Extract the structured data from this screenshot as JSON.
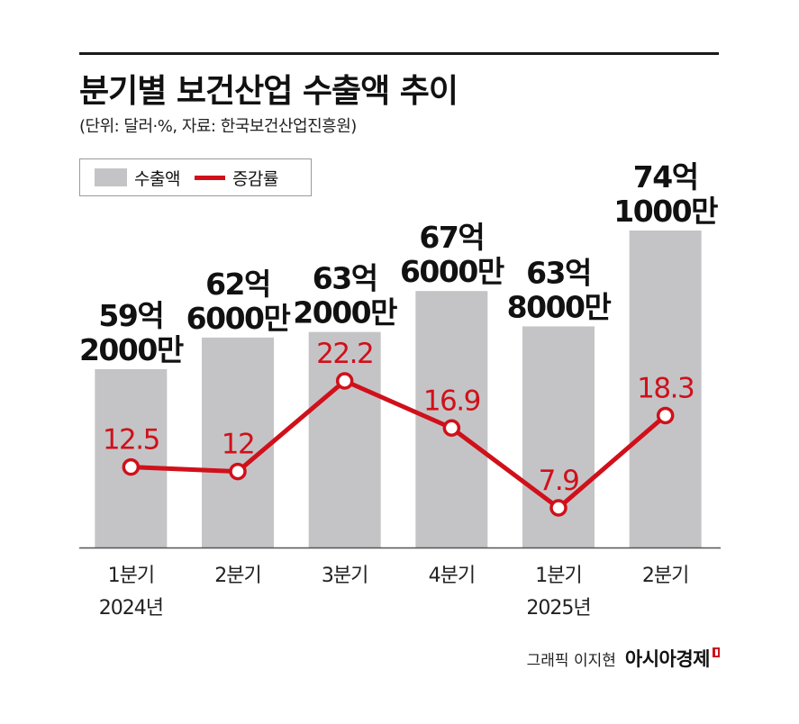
{
  "title": "분기별 보건산업 수출액 추이",
  "subtitle": "(단위: 달러·%, 자료: 한국보건산업진흥원)",
  "legend": {
    "bar_label": "수출액",
    "line_label": "증감률"
  },
  "credit": {
    "artist": "그래픽 이지현",
    "brand": "아시아경제"
  },
  "colors": {
    "bar": "#c4c4c6",
    "line": "#d0101a",
    "axis": "#555555"
  },
  "chart_data": {
    "type": "bar",
    "categories": [
      [
        "1분기",
        "2024년"
      ],
      [
        "2분기"
      ],
      [
        "3분기"
      ],
      [
        "4분기"
      ],
      [
        "1분기",
        "2025년"
      ],
      [
        "2분기"
      ]
    ],
    "series": [
      {
        "name": "수출액",
        "type": "bar",
        "values": [
          5920000000,
          6260000000,
          6320000000,
          6760000000,
          6380000000,
          7410000000
        ],
        "labels": [
          [
            "59억",
            "2000만"
          ],
          [
            "62억",
            "6000만"
          ],
          [
            "63억",
            "2000만"
          ],
          [
            "67억",
            "6000만"
          ],
          [
            "63억",
            "8000만"
          ],
          [
            "74억",
            "1000만"
          ]
        ]
      },
      {
        "name": "증감률",
        "type": "line",
        "values": [
          12.5,
          12,
          22.2,
          16.9,
          7.9,
          18.3
        ],
        "labels": [
          "12.5",
          "12",
          "22.2",
          "16.9",
          "7.9",
          "18.3"
        ]
      }
    ],
    "grid": false,
    "legend_position": "top-left"
  }
}
